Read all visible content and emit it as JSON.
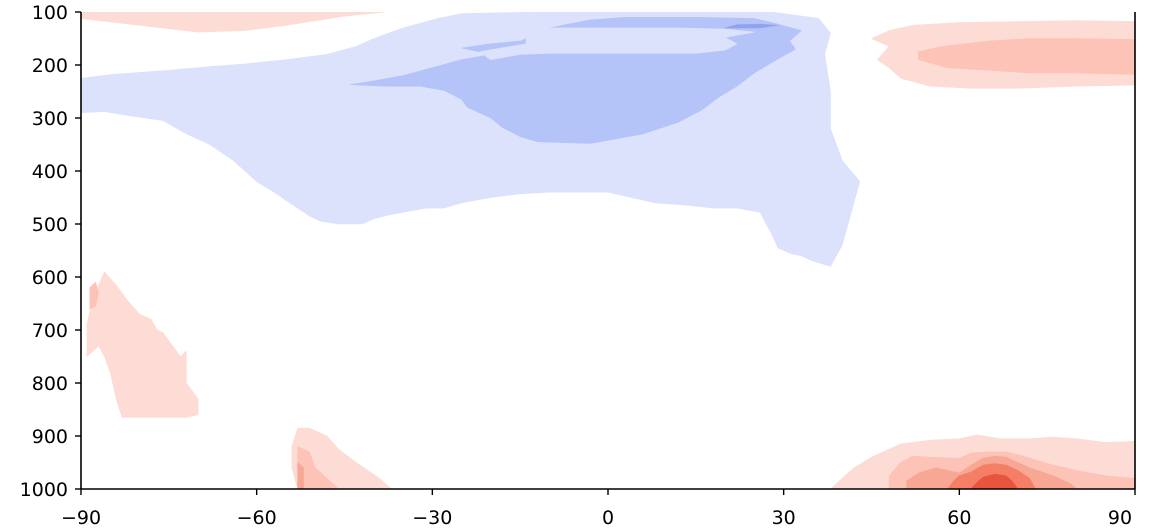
{
  "chart_data": {
    "type": "heatmap",
    "subtype": "filled-contour",
    "title": "",
    "xlabel": "",
    "ylabel": "",
    "xlim": [
      -90,
      90
    ],
    "ylim": [
      1000,
      100
    ],
    "y_inverted": true,
    "grid": false,
    "legend": "none",
    "x_ticks": [
      -90,
      -60,
      -30,
      0,
      30,
      60,
      90
    ],
    "x_tick_labels": [
      "−90",
      "−60",
      "−30",
      "0",
      "30",
      "60",
      "90"
    ],
    "y_ticks": [
      100,
      200,
      300,
      400,
      500,
      600,
      700,
      800,
      900,
      1000
    ],
    "y_tick_labels": [
      "100",
      "200",
      "300",
      "400",
      "500",
      "600",
      "700",
      "800",
      "900",
      "1000"
    ],
    "contour_levels": [
      {
        "level": -3,
        "color": "#8fa3ee"
      },
      {
        "level": -2,
        "color": "#b4c3f8"
      },
      {
        "level": -1,
        "color": "#dce2fb"
      },
      {
        "level": 1,
        "color": "#fddcd5"
      },
      {
        "level": 2,
        "color": "#fcc3b6"
      },
      {
        "level": 3,
        "color": "#f8a794"
      },
      {
        "level": 4,
        "color": "#f47f66"
      },
      {
        "level": 5,
        "color": "#e8553f"
      }
    ],
    "regions": [
      {
        "level": 1,
        "points": [
          [
            -90,
            100
          ],
          [
            -78,
            100
          ],
          [
            -60,
            100
          ],
          [
            -45,
            100
          ],
          [
            -38,
            100
          ],
          [
            -45,
            108
          ],
          [
            -55,
            125
          ],
          [
            -62,
            135
          ],
          [
            -70,
            138
          ],
          [
            -80,
            125
          ],
          [
            -88,
            115
          ],
          [
            -90,
            112
          ]
        ]
      },
      {
        "level": -1,
        "points": [
          [
            -90,
            225
          ],
          [
            -85,
            218
          ],
          [
            -75,
            210
          ],
          [
            -68,
            203
          ],
          [
            -62,
            198
          ],
          [
            -55,
            190
          ],
          [
            -48,
            180
          ],
          [
            -43,
            165
          ],
          [
            -40,
            150
          ],
          [
            -35,
            130
          ],
          [
            -29,
            112
          ],
          [
            -25,
            103
          ],
          [
            -12,
            100
          ],
          [
            0,
            100
          ],
          [
            15,
            100
          ],
          [
            28,
            100
          ],
          [
            36,
            112
          ],
          [
            38,
            140
          ],
          [
            37,
            180
          ],
          [
            38,
            250
          ],
          [
            38,
            320
          ],
          [
            40,
            380
          ],
          [
            43,
            420
          ],
          [
            42,
            460
          ],
          [
            40,
            540
          ],
          [
            38,
            580
          ],
          [
            35,
            570
          ],
          [
            33,
            560
          ],
          [
            31,
            555
          ],
          [
            29,
            545
          ],
          [
            28,
            520
          ],
          [
            27,
            500
          ],
          [
            26,
            478
          ],
          [
            22,
            470
          ],
          [
            18,
            470
          ],
          [
            14,
            465
          ],
          [
            8,
            460
          ],
          [
            0,
            440
          ],
          [
            -10,
            440
          ],
          [
            -15,
            443
          ],
          [
            -20,
            450
          ],
          [
            -25,
            460
          ],
          [
            -28,
            470
          ],
          [
            -31,
            470
          ],
          [
            -35,
            478
          ],
          [
            -37,
            482
          ],
          [
            -40,
            490
          ],
          [
            -42,
            500
          ],
          [
            -46,
            500
          ],
          [
            -49,
            495
          ],
          [
            -51,
            485
          ],
          [
            -53,
            470
          ],
          [
            -55,
            455
          ],
          [
            -57,
            440
          ],
          [
            -60,
            420
          ],
          [
            -62,
            400
          ],
          [
            -64,
            380
          ],
          [
            -68,
            350
          ],
          [
            -72,
            330
          ],
          [
            -76,
            305
          ],
          [
            -82,
            295
          ],
          [
            -86,
            288
          ],
          [
            -90,
            290
          ]
        ]
      },
      {
        "level": -2,
        "points": [
          [
            -44,
            237
          ],
          [
            -40,
            230
          ],
          [
            -35,
            220
          ],
          [
            -30,
            205
          ],
          [
            -25,
            190
          ],
          [
            -20,
            180
          ],
          [
            -25,
            168
          ],
          [
            -20,
            160
          ],
          [
            -15,
            155
          ],
          [
            -10,
            130
          ],
          [
            -3,
            115
          ],
          [
            3,
            110
          ],
          [
            15,
            110
          ],
          [
            25,
            112
          ],
          [
            28,
            120
          ],
          [
            33,
            135
          ],
          [
            31,
            155
          ],
          [
            32,
            170
          ],
          [
            28,
            195
          ],
          [
            25,
            215
          ],
          [
            22,
            240
          ],
          [
            19,
            260
          ],
          [
            16,
            285
          ],
          [
            12,
            308
          ],
          [
            6,
            330
          ],
          [
            -3,
            348
          ],
          [
            -12,
            345
          ],
          [
            -15,
            335
          ],
          [
            -18,
            318
          ],
          [
            -20,
            300
          ],
          [
            -24,
            280
          ],
          [
            -25,
            265
          ],
          [
            -28,
            248
          ],
          [
            -32,
            240
          ],
          [
            -38,
            240
          ]
        ]
      },
      {
        "level": -1,
        "points": [
          [
            -20,
            190
          ],
          [
            -15,
            180
          ],
          [
            -10,
            178
          ],
          [
            -2,
            178
          ],
          [
            8,
            178
          ],
          [
            15,
            178
          ],
          [
            20,
            172
          ],
          [
            22,
            160
          ],
          [
            20,
            148
          ],
          [
            25,
            138
          ],
          [
            20,
            132
          ],
          [
            12,
            130
          ],
          [
            0,
            130
          ],
          [
            -10,
            130
          ],
          [
            -14,
            140
          ],
          [
            -14,
            160
          ],
          [
            -22,
            175
          ]
        ]
      },
      {
        "level": -3,
        "points": [
          [
            20,
            130
          ],
          [
            22,
            124
          ],
          [
            26,
            123
          ],
          [
            29,
            125
          ],
          [
            26,
            130
          ]
        ]
      },
      {
        "level": 1,
        "points": [
          [
            48,
            165
          ],
          [
            45,
            150
          ],
          [
            48,
            135
          ],
          [
            52,
            125
          ],
          [
            60,
            120
          ],
          [
            70,
            118
          ],
          [
            80,
            116
          ],
          [
            90,
            118
          ],
          [
            90,
            238
          ],
          [
            80,
            240
          ],
          [
            70,
            244
          ],
          [
            62,
            244
          ],
          [
            55,
            240
          ],
          [
            50,
            225
          ],
          [
            48,
            205
          ],
          [
            46,
            190
          ]
        ]
      },
      {
        "level": 2,
        "points": [
          [
            53,
            190
          ],
          [
            53,
            175
          ],
          [
            57,
            165
          ],
          [
            65,
            155
          ],
          [
            72,
            150
          ],
          [
            80,
            150
          ],
          [
            90,
            152
          ],
          [
            90,
            218
          ],
          [
            80,
            215
          ],
          [
            72,
            215
          ],
          [
            65,
            210
          ],
          [
            58,
            205
          ]
        ]
      },
      {
        "level": 1,
        "points": [
          [
            -89,
            690
          ],
          [
            -88,
            640
          ],
          [
            -86,
            590
          ],
          [
            -84,
            615
          ],
          [
            -82,
            645
          ],
          [
            -80,
            670
          ],
          [
            -78,
            680
          ],
          [
            -77,
            700
          ],
          [
            -76,
            705
          ],
          [
            -75,
            720
          ],
          [
            -73,
            750
          ],
          [
            -72,
            740
          ],
          [
            -72,
            800
          ],
          [
            -70,
            830
          ],
          [
            -70,
            860
          ],
          [
            -72,
            865
          ],
          [
            -73,
            865
          ],
          [
            -83,
            865
          ],
          [
            -84,
            830
          ],
          [
            -85,
            780
          ],
          [
            -86,
            750
          ],
          [
            -87,
            730
          ],
          [
            -89,
            750
          ]
        ]
      },
      {
        "level": 2,
        "points": [
          [
            -88.5,
            620
          ],
          [
            -87.5,
            610
          ],
          [
            -87,
            630
          ],
          [
            -87.5,
            655
          ],
          [
            -88.5,
            660
          ]
        ]
      },
      {
        "level": 1,
        "points": [
          [
            -53,
            885
          ],
          [
            -51,
            885
          ],
          [
            -48,
            900
          ],
          [
            -46,
            925
          ],
          [
            -43,
            950
          ],
          [
            -39,
            980
          ],
          [
            -37,
            1000
          ],
          [
            -53,
            1000
          ],
          [
            -54,
            960
          ],
          [
            -54,
            920
          ]
        ]
      },
      {
        "level": 2,
        "points": [
          [
            -53,
            920
          ],
          [
            -51,
            930
          ],
          [
            -50,
            960
          ],
          [
            -48,
            980
          ],
          [
            -46,
            1000
          ],
          [
            -53,
            1000
          ]
        ]
      },
      {
        "level": 3,
        "points": [
          [
            -53,
            950
          ],
          [
            -52,
            960
          ],
          [
            -52,
            1000
          ],
          [
            -53,
            1000
          ]
        ]
      },
      {
        "level": 1,
        "points": [
          [
            38,
            1000
          ],
          [
            40,
            980
          ],
          [
            42,
            960
          ],
          [
            45,
            940
          ],
          [
            50,
            915
          ],
          [
            55,
            908
          ],
          [
            60,
            905
          ],
          [
            63,
            898
          ],
          [
            67,
            905
          ],
          [
            72,
            905
          ],
          [
            76,
            902
          ],
          [
            80,
            905
          ],
          [
            85,
            912
          ],
          [
            90,
            910
          ],
          [
            90,
            1000
          ]
        ]
      },
      {
        "level": 2,
        "points": [
          [
            48,
            1000
          ],
          [
            48,
            975
          ],
          [
            50,
            950
          ],
          [
            52,
            938
          ],
          [
            55,
            940
          ],
          [
            60,
            942
          ],
          [
            62,
            932
          ],
          [
            65,
            930
          ],
          [
            68,
            930
          ],
          [
            70,
            935
          ],
          [
            73,
            945
          ],
          [
            76,
            955
          ],
          [
            80,
            965
          ],
          [
            85,
            975
          ],
          [
            90,
            980
          ],
          [
            90,
            1000
          ]
        ]
      },
      {
        "level": 3,
        "points": [
          [
            51,
            1000
          ],
          [
            51,
            985
          ],
          [
            53,
            970
          ],
          [
            56,
            960
          ],
          [
            60,
            970
          ],
          [
            62,
            955
          ],
          [
            64,
            942
          ],
          [
            66,
            938
          ],
          [
            68,
            940
          ],
          [
            70,
            950
          ],
          [
            72,
            960
          ],
          [
            76,
            975
          ],
          [
            79,
            990
          ],
          [
            80,
            1000
          ]
        ]
      },
      {
        "level": 4,
        "points": [
          [
            58,
            1000
          ],
          [
            59,
            985
          ],
          [
            60,
            975
          ],
          [
            62,
            968
          ],
          [
            64,
            955
          ],
          [
            66,
            952
          ],
          [
            68,
            955
          ],
          [
            70,
            965
          ],
          [
            72,
            980
          ],
          [
            73,
            1000
          ]
        ]
      },
      {
        "level": 5,
        "points": [
          [
            62,
            1000
          ],
          [
            63,
            988
          ],
          [
            64,
            978
          ],
          [
            66,
            972
          ],
          [
            68,
            975
          ],
          [
            69,
            985
          ],
          [
            70,
            1000
          ]
        ]
      },
      {
        "level": 5,
        "points": [
          [
            66,
            1000
          ],
          [
            66,
            990
          ],
          [
            67,
            985
          ],
          [
            68,
            992
          ],
          [
            68,
            1000
          ]
        ]
      }
    ]
  }
}
